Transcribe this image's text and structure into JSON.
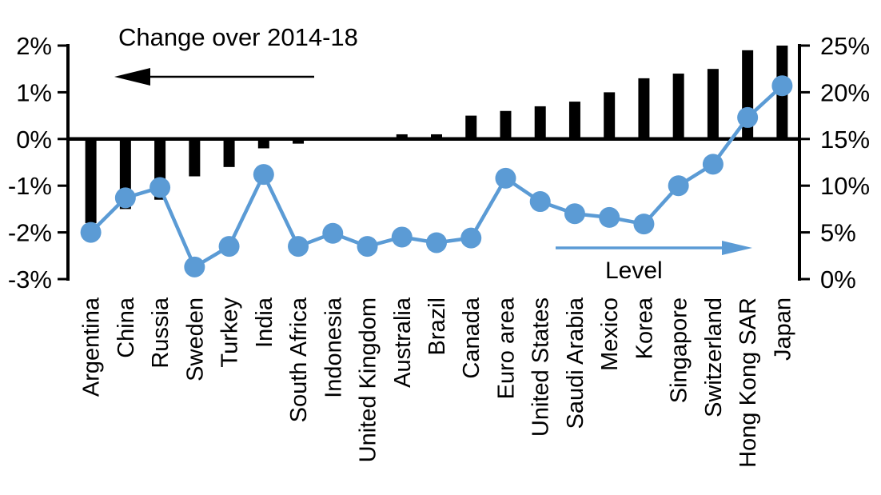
{
  "chart_data": {
    "type": "combo-bar-line",
    "categories": [
      "Argentina",
      "China",
      "Russia",
      "Sweden",
      "Turkey",
      "India",
      "South Africa",
      "Indonesia",
      "United Kingdom",
      "Australia",
      "Brazil",
      "Canada",
      "Euro area",
      "United States",
      "Saudi Arabia",
      "Mexico",
      "Korea",
      "Singapore",
      "Switzerland",
      "Hong Kong SAR",
      "Japan"
    ],
    "series": [
      {
        "name": "Change over 2014-18",
        "type": "bar",
        "axis": "left",
        "color": "#000000",
        "values": [
          -1.8,
          -1.5,
          -1.3,
          -0.8,
          -0.6,
          -0.2,
          -0.1,
          0.0,
          0.0,
          0.1,
          0.1,
          0.5,
          0.6,
          0.7,
          0.8,
          1.0,
          1.3,
          1.4,
          1.5,
          1.9,
          2.0
        ]
      },
      {
        "name": "Level",
        "type": "line",
        "axis": "right",
        "color": "#5b9bd5",
        "values": [
          5.0,
          8.7,
          9.8,
          1.3,
          3.5,
          11.2,
          3.5,
          4.9,
          3.5,
          4.5,
          3.9,
          4.4,
          10.8,
          8.3,
          7.0,
          6.6,
          5.9,
          10.0,
          12.3,
          17.3,
          20.7
        ]
      }
    ],
    "left_axis": {
      "min": -3,
      "max": 2,
      "step": 1,
      "unit": "%",
      "tick_labels": [
        "2%",
        "1%",
        "0%",
        "-1%",
        "-2%",
        "-3%"
      ]
    },
    "right_axis": {
      "min": 0,
      "max": 25,
      "step": 5,
      "unit": "%",
      "tick_labels": [
        "25%",
        "20%",
        "15%",
        "10%",
        "5%",
        "0%"
      ]
    },
    "annotations": [
      {
        "text": "Change over 2014-18",
        "arrow_direction": "left",
        "color": "#000000"
      },
      {
        "text": "Level",
        "arrow_direction": "right",
        "color": "#5b9bd5"
      }
    ],
    "grid": "off",
    "legend": "none"
  }
}
